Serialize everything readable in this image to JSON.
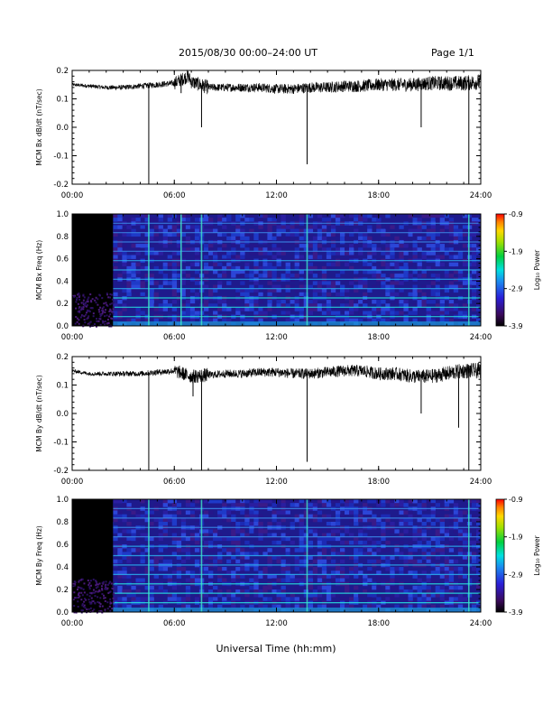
{
  "title": "2015/08/30  00:00–24:00 UT",
  "page_label": "Page 1/1",
  "xlabel": "Universal Time (hh:mm)",
  "colorbar": {
    "label": "Log₁₀ Power",
    "ticks": [
      "-0.9",
      "-1.9",
      "-2.9",
      "-3.9"
    ],
    "range": [
      -3.9,
      -0.9
    ]
  },
  "chart_data": [
    {
      "type": "line",
      "ylabel": "MCM Bx dB/dt (nT/sec)",
      "xlim": [
        0,
        24
      ],
      "ylim": [
        -0.2,
        0.2
      ],
      "x_ticks": [
        "00:00",
        "06:00",
        "12:00",
        "18:00",
        "24:00"
      ],
      "y_ticks": [
        "0.2",
        "0.1",
        "0.0",
        "-0.1",
        "-0.2"
      ],
      "series": [
        {
          "x": [
            0,
            1,
            2,
            3,
            4,
            5,
            6,
            6.8,
            7,
            8,
            9,
            10,
            11,
            12,
            13,
            14,
            15,
            16,
            17,
            18,
            19,
            20,
            21,
            22,
            23,
            24
          ],
          "y": [
            0.15,
            0.145,
            0.14,
            0.14,
            0.145,
            0.15,
            0.155,
            0.18,
            0.16,
            0.14,
            0.14,
            0.14,
            0.14,
            0.135,
            0.135,
            0.14,
            0.14,
            0.145,
            0.145,
            0.15,
            0.15,
            0.15,
            0.155,
            0.155,
            0.155,
            0.16
          ],
          "spikes": [
            [
              4.5,
              -0.2
            ],
            [
              6.4,
              0.12
            ],
            [
              7.6,
              0.0
            ],
            [
              13.8,
              -0.13
            ],
            [
              20.5,
              0.0
            ],
            [
              23.3,
              -0.2
            ]
          ]
        }
      ]
    },
    {
      "type": "heatmap",
      "ylabel": "MCM Bx Freq (Hz)",
      "xlim": [
        0,
        24
      ],
      "ylim": [
        0,
        1.0
      ],
      "x_ticks": [
        "00:00",
        "06:00",
        "12:00",
        "18:00",
        "24:00"
      ],
      "y_ticks": [
        "1.0",
        "0.8",
        "0.6",
        "0.4",
        "0.2",
        "0.0"
      ],
      "data_gap_hours": [
        0,
        2.4
      ],
      "harmonic_lines_hz": [
        0.083,
        0.167,
        0.25,
        0.333,
        0.417,
        0.5,
        0.583,
        0.667,
        0.75,
        0.833,
        0.917
      ],
      "vertical_events_hours": [
        4.5,
        6.4,
        7.6,
        13.8,
        23.3
      ]
    },
    {
      "type": "line",
      "ylabel": "MCM By dB/dt (nT/sec)",
      "xlim": [
        0,
        24
      ],
      "ylim": [
        -0.2,
        0.2
      ],
      "x_ticks": [
        "00:00",
        "06:00",
        "12:00",
        "18:00",
        "24:00"
      ],
      "y_ticks": [
        "0.2",
        "0.1",
        "0.0",
        "-0.1",
        "-0.2"
      ],
      "series": [
        {
          "x": [
            0,
            1,
            2,
            3,
            4,
            5,
            6,
            7,
            8,
            9,
            10,
            11,
            12,
            13,
            14,
            15,
            16,
            17,
            18,
            19,
            20,
            21,
            22,
            23,
            24
          ],
          "y": [
            0.15,
            0.14,
            0.14,
            0.14,
            0.14,
            0.145,
            0.15,
            0.13,
            0.135,
            0.14,
            0.14,
            0.145,
            0.145,
            0.14,
            0.14,
            0.145,
            0.15,
            0.15,
            0.14,
            0.14,
            0.13,
            0.13,
            0.14,
            0.15,
            0.15
          ],
          "spikes": [
            [
              4.5,
              -0.2
            ],
            [
              7.1,
              0.06
            ],
            [
              7.6,
              -0.2
            ],
            [
              13.8,
              -0.17
            ],
            [
              20.5,
              0.0
            ],
            [
              22.7,
              -0.05
            ],
            [
              23.3,
              -0.2
            ]
          ]
        }
      ]
    },
    {
      "type": "heatmap",
      "ylabel": "MCM By Freq (Hz)",
      "xlim": [
        0,
        24
      ],
      "ylim": [
        0,
        1.0
      ],
      "x_ticks": [
        "00:00",
        "06:00",
        "12:00",
        "18:00",
        "24:00"
      ],
      "y_ticks": [
        "1.0",
        "0.8",
        "0.6",
        "0.4",
        "0.2",
        "0.0"
      ],
      "data_gap_hours": [
        0,
        2.4
      ],
      "harmonic_lines_hz": [
        0.083,
        0.167,
        0.25,
        0.333,
        0.417,
        0.5,
        0.583,
        0.667,
        0.75,
        0.833,
        0.917
      ],
      "vertical_events_hours": [
        4.5,
        7.6,
        13.8,
        23.3
      ]
    }
  ]
}
